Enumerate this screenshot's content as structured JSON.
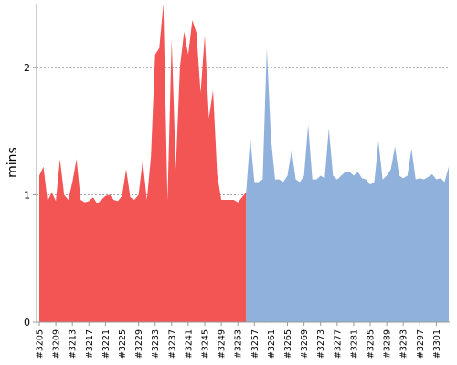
{
  "chart_data": {
    "type": "area",
    "ylabel": "mins",
    "ylim": [
      0,
      2.5
    ],
    "y_ticks": [
      0,
      1,
      2
    ],
    "gridlines": [
      1,
      2
    ],
    "x_tick_labels": [
      "#3205",
      "#3209",
      "#3213",
      "#3217",
      "#3221",
      "#3225",
      "#3229",
      "#3233",
      "#3237",
      "#3241",
      "#3245",
      "#3249",
      "#3253",
      "#3257",
      "#3261",
      "#3265",
      "#3269",
      "#3273",
      "#3277",
      "#3281",
      "#3285",
      "#3289",
      "#3293",
      "#3297",
      "#3301"
    ],
    "colors": {
      "failed": "#f35454",
      "passed": "#8fb1db",
      "grid": "#888888",
      "axis": "#999999"
    },
    "series": [
      {
        "color": "#f35454",
        "x": [
          3205,
          3206,
          3207,
          3208,
          3209,
          3210,
          3211,
          3212,
          3213,
          3214,
          3215,
          3216,
          3217,
          3218,
          3219,
          3220,
          3221,
          3222,
          3223,
          3224,
          3225,
          3226,
          3227,
          3228,
          3229,
          3230,
          3231,
          3232,
          3233,
          3234,
          3235,
          3236,
          3237,
          3238,
          3239,
          3240,
          3241,
          3242,
          3243,
          3244,
          3245,
          3246,
          3247,
          3248,
          3249,
          3250,
          3251,
          3252,
          3253,
          3254,
          3255
        ],
        "values": [
          1.15,
          1.22,
          0.95,
          1.02,
          0.95,
          1.28,
          1.0,
          0.96,
          1.1,
          1.28,
          0.96,
          0.94,
          0.95,
          0.98,
          0.93,
          0.96,
          0.99,
          1.0,
          0.96,
          0.95,
          0.99,
          1.2,
          0.98,
          0.96,
          1.0,
          1.27,
          0.96,
          1.3,
          2.1,
          2.15,
          2.55,
          0.95,
          2.22,
          1.2,
          2.0,
          2.28,
          2.1,
          2.37,
          2.27,
          1.8,
          2.25,
          1.6,
          1.82,
          1.16,
          0.96,
          0.96,
          0.96,
          0.96,
          0.94,
          0.98,
          1.02
        ]
      },
      {
        "color": "#8fb1db",
        "x": [
          3255,
          3256,
          3257,
          3258,
          3259,
          3260,
          3261,
          3262,
          3263,
          3264,
          3265,
          3266,
          3267,
          3268,
          3269,
          3270,
          3271,
          3272,
          3273,
          3274,
          3275,
          3276,
          3277,
          3278,
          3279,
          3280,
          3281,
          3282,
          3283,
          3284,
          3285,
          3286,
          3287,
          3288,
          3289,
          3290,
          3291,
          3292,
          3293,
          3294,
          3295,
          3296,
          3297,
          3298,
          3299,
          3300,
          3301,
          3302,
          3303,
          3304
        ],
        "values": [
          1.02,
          1.45,
          1.1,
          1.1,
          1.12,
          2.15,
          1.45,
          1.12,
          1.12,
          1.1,
          1.15,
          1.35,
          1.12,
          1.1,
          1.15,
          1.55,
          1.12,
          1.12,
          1.15,
          1.13,
          1.52,
          1.15,
          1.12,
          1.15,
          1.18,
          1.18,
          1.15,
          1.18,
          1.13,
          1.12,
          1.08,
          1.1,
          1.42,
          1.12,
          1.15,
          1.2,
          1.38,
          1.15,
          1.13,
          1.15,
          1.36,
          1.12,
          1.13,
          1.12,
          1.14,
          1.16,
          1.12,
          1.13,
          1.1,
          1.22
        ]
      }
    ]
  }
}
